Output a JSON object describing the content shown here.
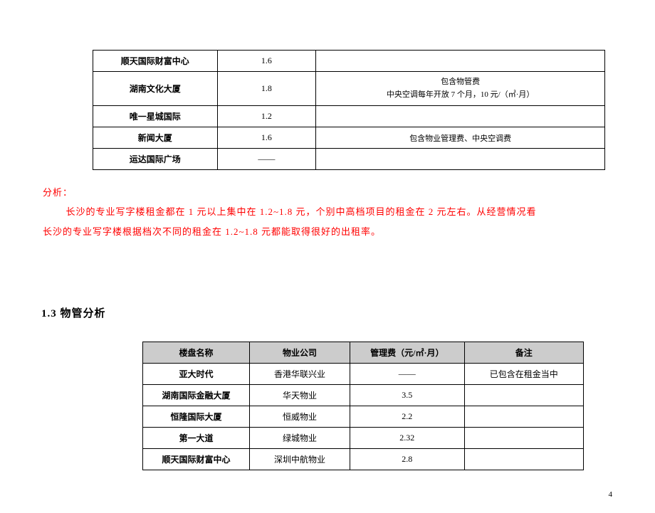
{
  "table1": {
    "rows": [
      {
        "name": "顺天国际财富中心",
        "value": "1.6",
        "note": ""
      },
      {
        "name": "湖南文化大厦",
        "value": "1.8",
        "note": "包含物管费\n中央空调每年开放 7 个月，10 元/（㎡·月）"
      },
      {
        "name": "唯一星城国际",
        "value": "1.2",
        "note": ""
      },
      {
        "name": "新闻大厦",
        "value": "1.6",
        "note": "包含物业管理费、中央空调费"
      },
      {
        "name": "运达国际广场",
        "value": "——",
        "note": ""
      }
    ]
  },
  "analysis": {
    "label": "分析：",
    "body1": "长沙的专业写字楼租金都在 1 元以上集中在 1.2~1.8 元，个别中高档项目的租金在 2 元左右。从经营情况看",
    "body2": "长沙的专业写字楼根据档次不同的租金在 1.2~1.8 元都能取得很好的出租率。"
  },
  "section_heading": "1.3 物管分析",
  "table2": {
    "headers": [
      "楼盘名称",
      "物业公司",
      "管理费（元/㎡·月）",
      "备注"
    ],
    "rows": [
      {
        "name": "亚大时代",
        "company": "香港华联兴业",
        "fee": "——",
        "note": "已包含在租金当中"
      },
      {
        "name": "湖南国际金融大厦",
        "company": "华天物业",
        "fee": "3.5",
        "note": ""
      },
      {
        "name": "恒隆国际大厦",
        "company": "恒威物业",
        "fee": "2.2",
        "note": ""
      },
      {
        "name": "第一大道",
        "company": "绿城物业",
        "fee": "2.32",
        "note": ""
      },
      {
        "name": "顺天国际财富中心",
        "company": "深圳中航物业",
        "fee": "2.8",
        "note": ""
      }
    ]
  },
  "page_number": "4"
}
